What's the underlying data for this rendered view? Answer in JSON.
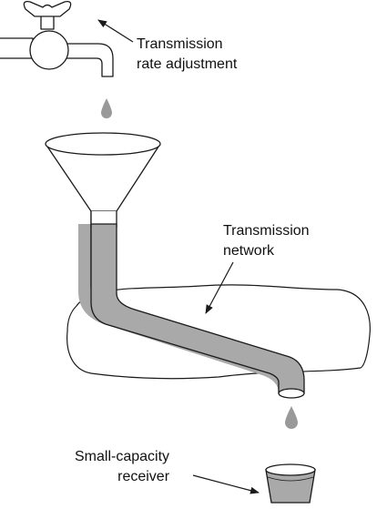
{
  "labels": {
    "faucet": {
      "line1": "Transmission",
      "line2": "rate adjustment"
    },
    "network": {
      "line1": "Transmission",
      "line2": "network"
    },
    "receiver": {
      "line1": "Small-capacity",
      "line2": "receiver"
    }
  },
  "colors": {
    "fluid": "#a9a9a9",
    "stroke": "#1a1a1a",
    "drop": "#999999"
  }
}
